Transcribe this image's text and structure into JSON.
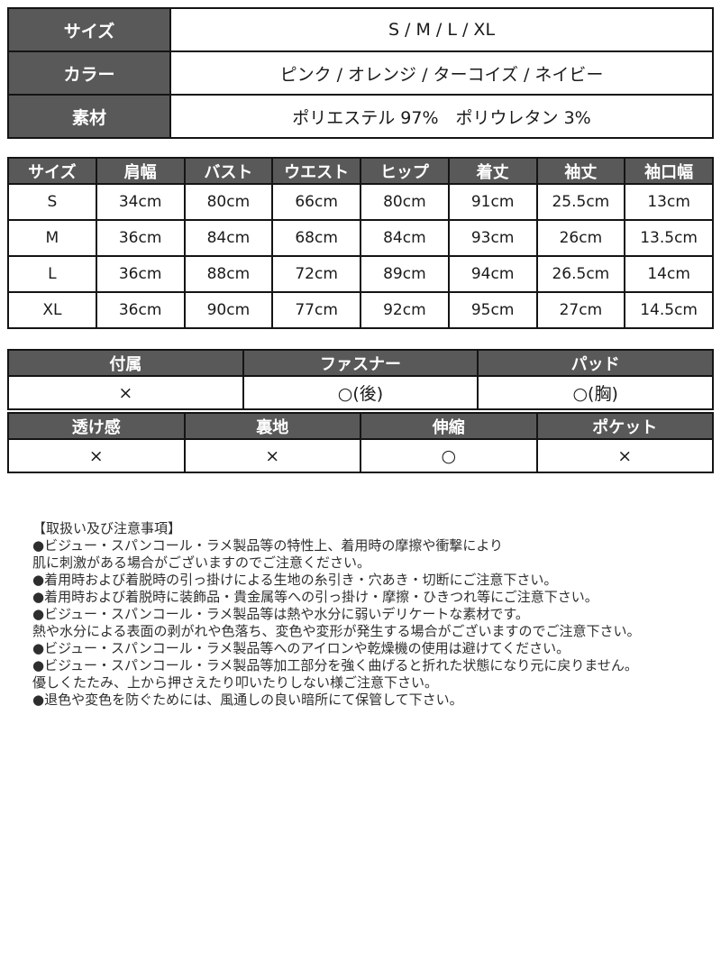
{
  "colors": {
    "header_bg": "#595959",
    "header_text": "#ffffff",
    "border": "#141414",
    "body_text": "#2e2e2e"
  },
  "spec_table": {
    "rows": [
      {
        "label": "サイズ",
        "value": "S / M / L / XL"
      },
      {
        "label": "カラー",
        "value": "ピンク / オレンジ / ターコイズ / ネイビー"
      },
      {
        "label": "素材",
        "value": "ポリエステル 97%　ポリウレタン 3%"
      }
    ]
  },
  "size_chart": {
    "headers": [
      "サイズ",
      "肩幅",
      "バスト",
      "ウエスト",
      "ヒップ",
      "着丈",
      "袖丈",
      "袖口幅"
    ],
    "rows": [
      [
        "S",
        "34cm",
        "80cm",
        "66cm",
        "80cm",
        "91cm",
        "25.5cm",
        "13cm"
      ],
      [
        "M",
        "36cm",
        "84cm",
        "68cm",
        "84cm",
        "93cm",
        "26cm",
        "13.5cm"
      ],
      [
        "L",
        "36cm",
        "88cm",
        "72cm",
        "89cm",
        "94cm",
        "26.5cm",
        "14cm"
      ],
      [
        "XL",
        "36cm",
        "90cm",
        "77cm",
        "92cm",
        "95cm",
        "27cm",
        "14.5cm"
      ]
    ]
  },
  "feature_table_a": {
    "headers": [
      "付属",
      "ファスナー",
      "パッド"
    ],
    "values": [
      "×",
      "○(後)",
      "○(胸)"
    ]
  },
  "feature_table_b": {
    "headers": [
      "透け感",
      "裏地",
      "伸縮",
      "ポケット"
    ],
    "values": [
      "×",
      "×",
      "○",
      "×"
    ]
  },
  "notes": {
    "heading": "【取扱い及び注意事項】",
    "lines": [
      "●ビジュー・スパンコール・ラメ製品等の特性上、着用時の摩擦や衝撃により",
      "肌に刺激がある場合がございますのでご注意ください。",
      "●着用時および着脱時の引っ掛けによる生地の糸引き・穴あき・切断にご注意下さい。",
      "●着用時および着脱時に装飾品・貴金属等への引っ掛け・摩擦・ひきつれ等にご注意下さい。",
      "●ビジュー・スパンコール・ラメ製品等は熱や水分に弱いデリケートな素材です。",
      "熱や水分による表面の剥がれや色落ち、変色や変形が発生する場合がございますのでご注意下さい。",
      "●ビジュー・スパンコール・ラメ製品等へのアイロンや乾燥機の使用は避けてください。",
      "●ビジュー・スパンコール・ラメ製品等加工部分を強く曲げると折れた状態になり元に戻りません。",
      "優しくたたみ、上から押さえたり叩いたりしない様ご注意下さい。",
      "●退色や変色を防ぐためには、風通しの良い暗所にて保管して下さい。"
    ]
  }
}
